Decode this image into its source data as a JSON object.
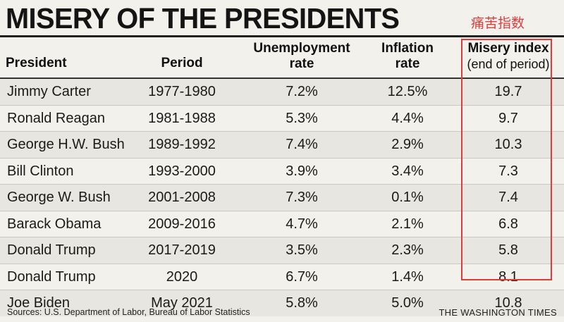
{
  "title": "MISERY OF THE PRESIDENTS",
  "annotation": "痛苦指数",
  "headers": {
    "president": "President",
    "period": "Period",
    "unemployment_line1": "Unemployment",
    "unemployment_line2": "rate",
    "inflation_line1": "Inflation",
    "inflation_line2": "rate",
    "misery_line1": "Misery index",
    "misery_line2": "(end of period)"
  },
  "rows": [
    {
      "president": "Jimmy Carter",
      "period": "1977-1980",
      "unemployment": "7.2%",
      "inflation": "12.5%",
      "misery": "19.7"
    },
    {
      "president": "Ronald Reagan",
      "period": "1981-1988",
      "unemployment": "5.3%",
      "inflation": "4.4%",
      "misery": "9.7"
    },
    {
      "president": "George H.W. Bush",
      "period": "1989-1992",
      "unemployment": "7.4%",
      "inflation": "2.9%",
      "misery": "10.3"
    },
    {
      "president": "Bill Clinton",
      "period": "1993-2000",
      "unemployment": "3.9%",
      "inflation": "3.4%",
      "misery": "7.3"
    },
    {
      "president": "George W. Bush",
      "period": "2001-2008",
      "unemployment": "7.3%",
      "inflation": "0.1%",
      "misery": "7.4"
    },
    {
      "president": "Barack Obama",
      "period": "2009-2016",
      "unemployment": "4.7%",
      "inflation": "2.1%",
      "misery": "6.8"
    },
    {
      "president": "Donald Trump",
      "period": "2017-2019",
      "unemployment": "3.5%",
      "inflation": "2.3%",
      "misery": "5.8"
    },
    {
      "president": "Donald Trump",
      "period": "2020",
      "unemployment": "6.7%",
      "inflation": "1.4%",
      "misery": "8.1"
    },
    {
      "president": "Joe Biden",
      "period": "May 2021",
      "unemployment": "5.8%",
      "inflation": "5.0%",
      "misery": "10.8"
    }
  ],
  "footer": {
    "source": "Sources: U.S. Department of Labor, Bureau of Labor Statistics",
    "brand": "THE WASHINGTON TIMES"
  },
  "colors": {
    "highlight": "#e23b3b",
    "background": "#f2f1ec",
    "stripe": "#e7e6e0"
  }
}
